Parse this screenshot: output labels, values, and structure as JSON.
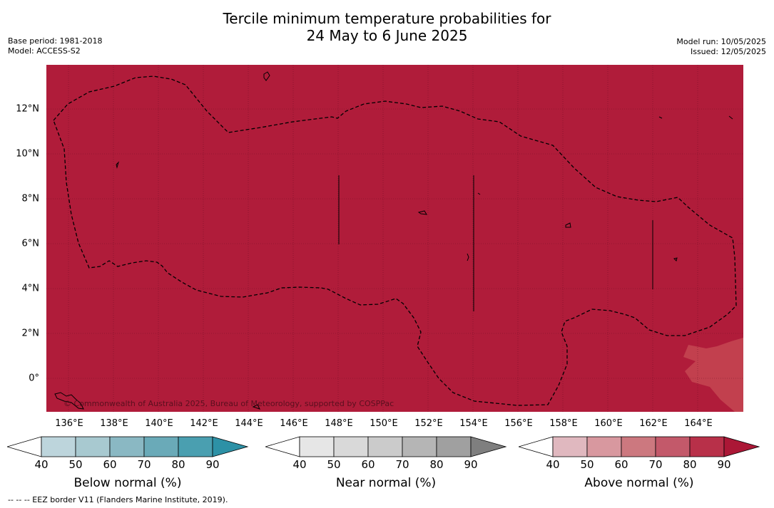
{
  "title_line1": "Tercile minimum temperature probabilities for",
  "title_line2": "24 May to 6 June 2025",
  "base_period": "Base period: 1981-2018",
  "model": "Model: ACCESS-S2",
  "model_run": "Model run: 10/05/2025",
  "issued": "Issued: 12/05/2025",
  "copyright": "© Commonwealth of Australia 2025, Bureau of Meteorology, supported by COSPPac",
  "x_ticks": [
    "136°E",
    "138°E",
    "140°E",
    "142°E",
    "144°E",
    "146°E",
    "148°E",
    "150°E",
    "152°E",
    "154°E",
    "156°E",
    "158°E",
    "160°E",
    "162°E",
    "164°E"
  ],
  "y_ticks": [
    "12°N",
    "10°N",
    "8°N",
    "6°N",
    "4°N",
    "2°N",
    "0°"
  ],
  "colorbars": [
    {
      "label": "Below normal (%)",
      "ticks": [
        "40",
        "50",
        "60",
        "70",
        "80",
        "90"
      ],
      "colors": [
        "#bdd5dc",
        "#a8c9d0",
        "#8ab8c3",
        "#6aaab8",
        "#4a9fb0",
        "#2d91a6"
      ]
    },
    {
      "label": "Near normal (%)",
      "ticks": [
        "40",
        "50",
        "60",
        "70",
        "80",
        "90"
      ],
      "colors": [
        "#e6e6e6",
        "#d9d9d9",
        "#cbcbcb",
        "#b5b5b5",
        "#a0a0a0",
        "#7f7f7f"
      ]
    },
    {
      "label": "Above normal (%)",
      "ticks": [
        "40",
        "50",
        "60",
        "70",
        "80",
        "90"
      ],
      "colors": [
        "#e0b8bf",
        "#d8989f",
        "#cc787f",
        "#c3596a",
        "#b83049",
        "#ab1736"
      ]
    }
  ],
  "footnote": "--  --  -- EEZ border V11 (Flanders Marine Institute, 2019).",
  "map_fill_color": "#b01c3a",
  "map_lighter_patch_color": "#c2404e"
}
